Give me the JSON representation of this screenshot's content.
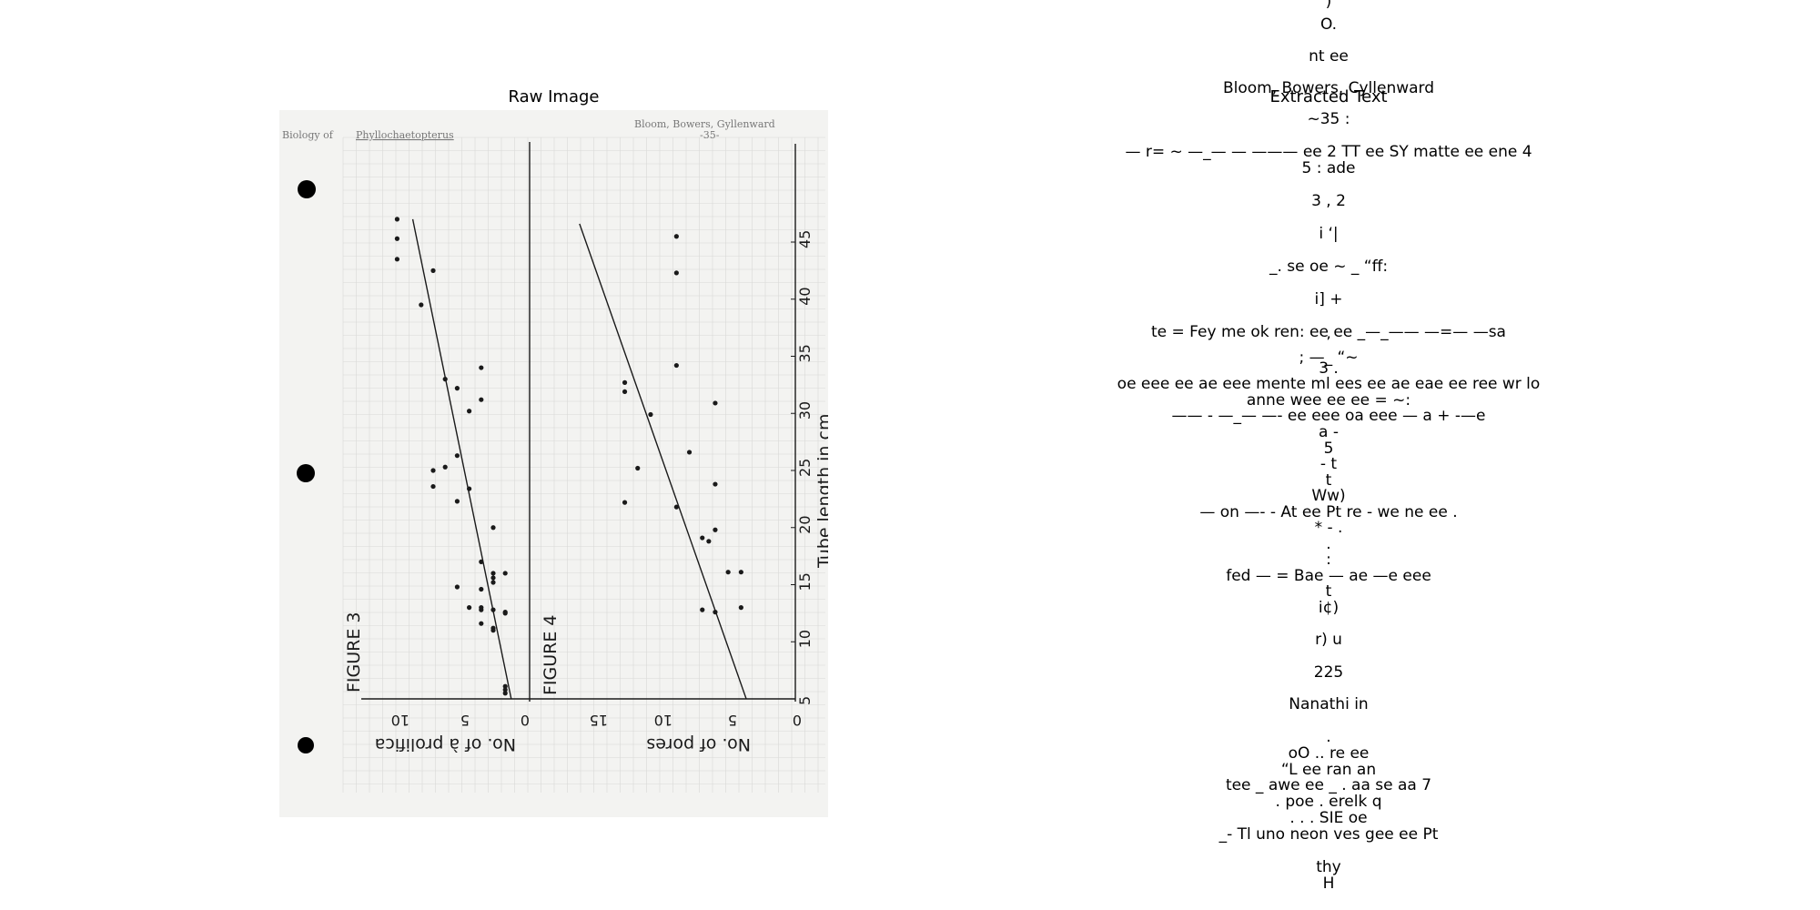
{
  "panels": {
    "raw_title": "Raw Image",
    "text_title": "Extracted Text"
  },
  "scan": {
    "header_left_prefix": "Biology of",
    "header_left_genus": "Phyllochaetopterus",
    "header_right": "Bloom, Bowers, Gyllenward",
    "page_number": "-35-",
    "figure3_label": "FIGURE 3",
    "figure4_label": "FIGURE 4",
    "fig3_axis_label": "No. of à prolifica",
    "fig4_axis_label": "No. of pores",
    "tube_axis_label": "Tube length in cm",
    "tube_ticks": [
      "5",
      "10",
      "15",
      "20",
      "25",
      "30",
      "35",
      "40",
      "45"
    ],
    "fig3_ticks": [
      "10",
      "5",
      "0"
    ],
    "fig4_ticks": [
      "15",
      "10",
      "5",
      "0"
    ],
    "colors": {
      "paper": "#f3f3f1",
      "grid": "#d9d9d7",
      "ink": "#1a1a1a",
      "hole": "#000000"
    }
  },
  "chart_data": [
    {
      "type": "scatter",
      "title": "FIGURE 3",
      "xlabel": "Tube length in cm",
      "ylabel": "No. of à prolifica",
      "xlim": [
        5,
        47
      ],
      "ylim": [
        0,
        13
      ],
      "x": [
        47,
        45.3,
        43.5,
        42.5,
        39.5,
        34,
        33,
        32.2,
        31.2,
        30.2,
        26.3,
        25.3,
        25,
        23.6,
        23.4,
        22.3,
        20,
        17,
        16,
        16,
        15.6,
        15.2,
        14.8,
        14.6,
        13,
        13,
        12.8,
        12.8,
        12.6,
        12.5,
        11.6,
        11.2,
        11,
        6.1,
        5.8,
        5.5
      ],
      "y": [
        10.5,
        10.5,
        10.5,
        7.5,
        8.5,
        3.5,
        6.5,
        5.5,
        3.5,
        4.5,
        5.5,
        6.5,
        7.5,
        7.5,
        4.5,
        5.5,
        2.5,
        3.5,
        2.5,
        1.5,
        2.5,
        2.5,
        5.5,
        3.5,
        4.5,
        3.5,
        3.5,
        2.5,
        1.5,
        1.5,
        3.5,
        2.5,
        2.5,
        1.5,
        1.5,
        1.5
      ],
      "fit_line": {
        "x": [
          5,
          47
        ],
        "y": [
          1,
          9.2
        ]
      },
      "grid": true
    },
    {
      "type": "scatter",
      "title": "FIGURE 4",
      "xlabel": "Tube length in cm",
      "ylabel": "No. of pores",
      "xlim": [
        5,
        47
      ],
      "ylim": [
        0,
        17
      ],
      "x": [
        45.5,
        42.3,
        34.2,
        32.7,
        31.9,
        30.9,
        29.9,
        26.6,
        25.2,
        23.8,
        22.2,
        21.8,
        19.8,
        19.1,
        18.8,
        16.1,
        16.1,
        13,
        12.8,
        12.6
      ],
      "y": [
        9.2,
        9.2,
        9.2,
        13.2,
        13.2,
        6.2,
        11.2,
        8.2,
        12.2,
        6.2,
        13.2,
        9.2,
        6.2,
        7.2,
        6.7,
        4.2,
        5.2,
        4.2,
        7.2,
        6.2
      ],
      "fit_line": {
        "x": [
          5,
          46.6
        ],
        "y": [
          3.8,
          16.7
        ]
      },
      "grid": true
    }
  ],
  "ocr_lines": [
    ")",
    "O.",
    "",
    "nt ee",
    "",
    "Bloom, Bowers, Cyllenward",
    "",
    "~35 :",
    "",
    "— r= ~ —_— — ——— ee 2 TT ee SY matte ee ene 4",
    "5 : ade",
    "",
    "3 , 2",
    "",
    "i ‘|",
    "",
    "_. se oe ~ _ “ff:",
    "",
    "i] +",
    "",
    "te = Fey me ok ren: ee ee _—_—— —=— —sa",
    "’",
    "; —_ “~",
    "3 .",
    "oe eee ee ae eee mente ml ees ee ae eae ee ree wr lo",
    "anne wee ee ee = ~:",
    "—— - —_— —- ee eee oa eee — a + -—e",
    "a -",
    "5",
    "- t",
    "t",
    "Ww)",
    "— on —- - At ee Pt re - we ne ee .",
    "* - .",
    ".",
    ":",
    "fed — = Bae — ae —e eee",
    "t",
    "i¢)",
    "",
    "r) u",
    "",
    "225",
    "",
    "Nanathi in",
    "",
    ".",
    "oO .. re ee",
    "“L ee ran an",
    "tee _ awe ee _ . aa se aa 7",
    ". poe . erelk q",
    ". . . SIE oe",
    "_- Tl uno neon ves gee ee Pt",
    "",
    "thy",
    "H"
  ]
}
